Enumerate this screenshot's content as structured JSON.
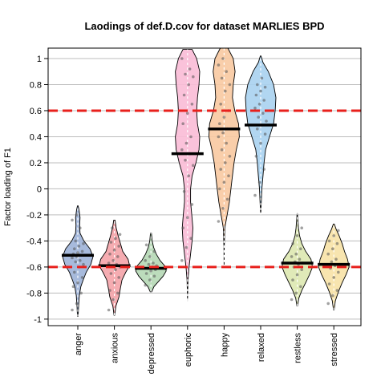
{
  "chart_data": {
    "type": "violin",
    "title": "Laodings of def.D.cov for dataset MARLIES BPD",
    "xlabel": "",
    "ylabel": "Factor loading of F1",
    "ylim": [
      -1.05,
      1.08
    ],
    "yticks": [
      -1,
      -0.8,
      -0.6,
      -0.4,
      -0.2,
      0,
      0.2,
      0.4,
      0.6,
      0.8,
      1
    ],
    "ytick_labels": [
      "-1",
      "-0.8",
      "-0.6",
      "-0.4",
      "-0.2",
      "0",
      "0.2",
      "0.4",
      "0.6",
      "0.8",
      "1"
    ],
    "grid": true,
    "reference_lines": [
      0.6,
      -0.6
    ],
    "reference_color": "#e8201c",
    "categories": [
      "anger",
      "anxious",
      "depressed",
      "euphoric",
      "happy",
      "relaxed",
      "restless",
      "stressed"
    ],
    "series": [
      {
        "category": "anger",
        "mean": -0.51,
        "color": "#9db3d8",
        "profile": [
          [
            -0.98,
            0.02
          ],
          [
            -0.9,
            0.05
          ],
          [
            -0.82,
            0.1
          ],
          [
            -0.75,
            0.2
          ],
          [
            -0.7,
            0.35
          ],
          [
            -0.64,
            0.55
          ],
          [
            -0.58,
            0.85
          ],
          [
            -0.52,
            1.0
          ],
          [
            -0.46,
            0.8
          ],
          [
            -0.4,
            0.4
          ],
          [
            -0.34,
            0.15
          ],
          [
            -0.28,
            0.12
          ],
          [
            -0.22,
            0.15
          ],
          [
            -0.16,
            0.08
          ],
          [
            -0.13,
            0.02
          ]
        ],
        "points": [
          -0.93,
          -0.88,
          -0.8,
          -0.75,
          -0.72,
          -0.68,
          -0.64,
          -0.6,
          -0.58,
          -0.56,
          -0.55,
          -0.53,
          -0.52,
          -0.51,
          -0.5,
          -0.49,
          -0.48,
          -0.46,
          -0.44,
          -0.42,
          -0.4,
          -0.3,
          -0.24,
          -0.2
        ]
      },
      {
        "category": "anxious",
        "mean": -0.59,
        "color": "#f4a3a8",
        "profile": [
          [
            -0.97,
            0.02
          ],
          [
            -0.9,
            0.1
          ],
          [
            -0.83,
            0.3
          ],
          [
            -0.76,
            0.4
          ],
          [
            -0.7,
            0.5
          ],
          [
            -0.64,
            0.75
          ],
          [
            -0.59,
            1.0
          ],
          [
            -0.54,
            0.9
          ],
          [
            -0.48,
            0.55
          ],
          [
            -0.42,
            0.4
          ],
          [
            -0.36,
            0.25
          ],
          [
            -0.3,
            0.12
          ],
          [
            -0.24,
            0.04
          ]
        ],
        "points": [
          -0.93,
          -0.85,
          -0.8,
          -0.78,
          -0.72,
          -0.68,
          -0.65,
          -0.62,
          -0.6,
          -0.59,
          -0.58,
          -0.57,
          -0.55,
          -0.52,
          -0.5,
          -0.47,
          -0.44,
          -0.41,
          -0.38,
          -0.35,
          -0.3
        ]
      },
      {
        "category": "depressed",
        "mean": -0.61,
        "color": "#b5d8b5",
        "profile": [
          [
            -0.79,
            0.05
          ],
          [
            -0.75,
            0.2
          ],
          [
            -0.71,
            0.5
          ],
          [
            -0.67,
            0.8
          ],
          [
            -0.63,
            1.0
          ],
          [
            -0.59,
            0.9
          ],
          [
            -0.55,
            0.6
          ],
          [
            -0.5,
            0.35
          ],
          [
            -0.45,
            0.18
          ],
          [
            -0.4,
            0.08
          ],
          [
            -0.34,
            0.03
          ]
        ],
        "points": [
          -0.74,
          -0.7,
          -0.67,
          -0.65,
          -0.63,
          -0.62,
          -0.61,
          -0.6,
          -0.59,
          -0.58,
          -0.57,
          -0.55,
          -0.52,
          -0.48,
          -0.43
        ]
      },
      {
        "category": "euphoric",
        "mean": 0.27,
        "color": "#f9bbd6",
        "profile": [
          [
            -0.86,
            0.0
          ],
          [
            -0.7,
            0.03
          ],
          [
            -0.6,
            0.1
          ],
          [
            -0.5,
            0.2
          ],
          [
            -0.4,
            0.3
          ],
          [
            -0.3,
            0.35
          ],
          [
            -0.2,
            0.28
          ],
          [
            -0.1,
            0.2
          ],
          [
            0.0,
            0.2
          ],
          [
            0.1,
            0.3
          ],
          [
            0.2,
            0.55
          ],
          [
            0.3,
            0.75
          ],
          [
            0.4,
            0.8
          ],
          [
            0.5,
            0.65
          ],
          [
            0.6,
            0.6
          ],
          [
            0.7,
            0.65
          ],
          [
            0.8,
            0.75
          ],
          [
            0.9,
            0.8
          ],
          [
            1.0,
            0.6
          ],
          [
            1.07,
            0.3
          ]
        ],
        "points": [
          -0.55,
          -0.45,
          -0.38,
          -0.3,
          -0.22,
          -0.12,
          -0.02,
          0.1,
          0.18,
          0.22,
          0.27,
          0.3,
          0.35,
          0.4,
          0.5,
          0.58,
          0.65,
          0.72,
          0.8,
          0.86,
          0.88,
          0.92,
          1.0
        ]
      },
      {
        "category": "happy",
        "mean": 0.46,
        "color": "#f8c9a1",
        "profile": [
          [
            -0.6,
            0.0
          ],
          [
            -0.45,
            0.01
          ],
          [
            -0.3,
            0.05
          ],
          [
            -0.2,
            0.2
          ],
          [
            -0.1,
            0.35
          ],
          [
            0.0,
            0.45
          ],
          [
            0.1,
            0.55
          ],
          [
            0.2,
            0.65
          ],
          [
            0.3,
            0.8
          ],
          [
            0.4,
            1.0
          ],
          [
            0.5,
            0.95
          ],
          [
            0.6,
            0.7
          ],
          [
            0.7,
            0.55
          ],
          [
            0.8,
            0.6
          ],
          [
            0.9,
            0.72
          ],
          [
            1.0,
            0.6
          ],
          [
            1.08,
            0.25
          ]
        ],
        "points": [
          -0.25,
          -0.15,
          -0.08,
          0.0,
          0.05,
          0.1,
          0.15,
          0.2,
          0.25,
          0.3,
          0.35,
          0.4,
          0.43,
          0.46,
          0.5,
          0.55,
          0.6,
          0.65,
          0.75,
          0.8,
          0.85,
          0.9,
          0.95,
          1.0
        ]
      },
      {
        "category": "relaxed",
        "mean": 0.49,
        "color": "#a9d1ef",
        "profile": [
          [
            -0.2,
            0.0
          ],
          [
            -0.1,
            0.04
          ],
          [
            0.0,
            0.08
          ],
          [
            0.1,
            0.15
          ],
          [
            0.2,
            0.22
          ],
          [
            0.3,
            0.32
          ],
          [
            0.4,
            0.58
          ],
          [
            0.5,
            0.85
          ],
          [
            0.6,
            0.95
          ],
          [
            0.7,
            1.0
          ],
          [
            0.8,
            0.85
          ],
          [
            0.9,
            0.5
          ],
          [
            0.97,
            0.15
          ],
          [
            1.02,
            0.02
          ]
        ],
        "points": [
          -0.05,
          0.05,
          0.15,
          0.25,
          0.35,
          0.42,
          0.46,
          0.49,
          0.52,
          0.55,
          0.58,
          0.62,
          0.65,
          0.68,
          0.72,
          0.75,
          0.78,
          0.8,
          0.85
        ]
      },
      {
        "category": "restless",
        "mean": -0.57,
        "color": "#dde8b0",
        "profile": [
          [
            -0.9,
            0.02
          ],
          [
            -0.84,
            0.1
          ],
          [
            -0.78,
            0.3
          ],
          [
            -0.72,
            0.55
          ],
          [
            -0.66,
            0.8
          ],
          [
            -0.6,
            1.0
          ],
          [
            -0.54,
            0.9
          ],
          [
            -0.48,
            0.55
          ],
          [
            -0.42,
            0.3
          ],
          [
            -0.36,
            0.15
          ],
          [
            -0.3,
            0.08
          ],
          [
            -0.24,
            0.04
          ],
          [
            -0.19,
            0.01
          ]
        ],
        "points": [
          -0.85,
          -0.8,
          -0.75,
          -0.7,
          -0.66,
          -0.62,
          -0.6,
          -0.58,
          -0.57,
          -0.56,
          -0.54,
          -0.52,
          -0.5,
          -0.46,
          -0.42,
          -0.36,
          -0.3
        ]
      },
      {
        "category": "stressed",
        "mean": -0.58,
        "color": "#f7e2a6",
        "profile": [
          [
            -0.93,
            0.02
          ],
          [
            -0.86,
            0.1
          ],
          [
            -0.79,
            0.3
          ],
          [
            -0.72,
            0.55
          ],
          [
            -0.66,
            0.8
          ],
          [
            -0.6,
            1.0
          ],
          [
            -0.54,
            0.9
          ],
          [
            -0.48,
            0.7
          ],
          [
            -0.42,
            0.55
          ],
          [
            -0.36,
            0.35
          ],
          [
            -0.31,
            0.15
          ],
          [
            -0.27,
            0.03
          ]
        ],
        "points": [
          -0.88,
          -0.82,
          -0.78,
          -0.73,
          -0.68,
          -0.64,
          -0.61,
          -0.59,
          -0.58,
          -0.56,
          -0.54,
          -0.5,
          -0.46,
          -0.42,
          -0.4,
          -0.36,
          -0.32
        ]
      }
    ]
  }
}
